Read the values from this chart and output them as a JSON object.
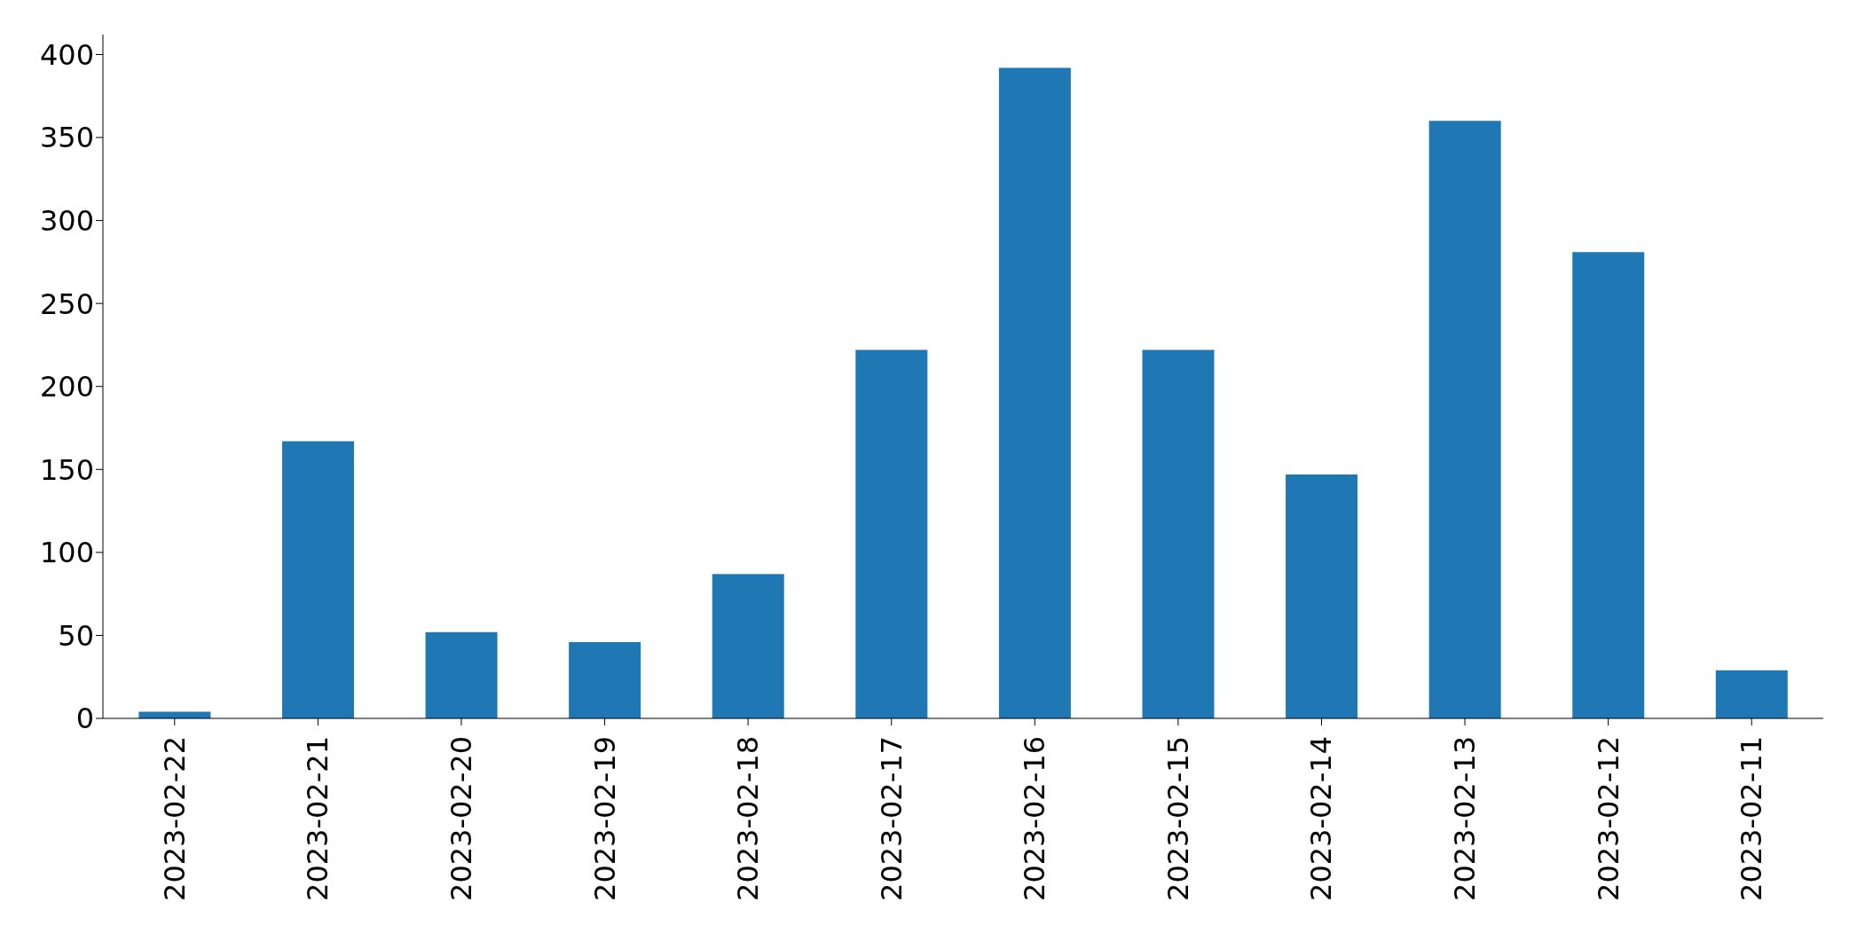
{
  "chart_data": {
    "type": "bar",
    "categories": [
      "2023-02-22",
      "2023-02-21",
      "2023-02-20",
      "2023-02-19",
      "2023-02-18",
      "2023-02-17",
      "2023-02-16",
      "2023-02-15",
      "2023-02-14",
      "2023-02-13",
      "2023-02-12",
      "2023-02-11"
    ],
    "values": [
      4,
      167,
      52,
      46,
      87,
      222,
      392,
      222,
      147,
      360,
      281,
      29
    ],
    "color": "#1f77b4",
    "ylim": [
      0,
      412
    ],
    "yticks": [
      0,
      50,
      100,
      150,
      200,
      250,
      300,
      350,
      400
    ],
    "grid": false,
    "legend": false
  }
}
